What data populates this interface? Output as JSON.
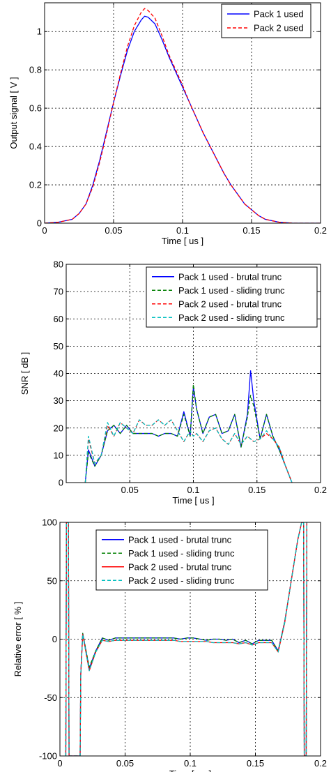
{
  "chart_data": [
    {
      "type": "line",
      "xlabel": "Time [ us ]",
      "ylabel": "Output signal [ V ]",
      "xlim": [
        0,
        0.2
      ],
      "ylim": [
        0,
        1.15
      ],
      "xticks": [
        0,
        0.05,
        0.1,
        0.15,
        0.2
      ],
      "xtick_labels": [
        "0",
        "0.05",
        "0.1",
        "0.15",
        "0.2"
      ],
      "yticks": [
        0,
        0.2,
        0.4,
        0.6,
        0.8,
        1
      ],
      "ytick_labels": [
        "0",
        "0.2",
        "0.4",
        "0.6",
        "0.8",
        "1"
      ],
      "grid": true,
      "legend_position": "top-right",
      "series": [
        {
          "name": "Pack 1 used",
          "color": "#0000ff",
          "dash": "solid",
          "x": [
            0,
            0.01,
            0.02,
            0.025,
            0.03,
            0.035,
            0.04,
            0.045,
            0.05,
            0.055,
            0.06,
            0.065,
            0.07,
            0.0725,
            0.075,
            0.08,
            0.085,
            0.09,
            0.095,
            0.1,
            0.105,
            0.11,
            0.115,
            0.12,
            0.125,
            0.13,
            0.135,
            0.14,
            0.145,
            0.15,
            0.155,
            0.16,
            0.17,
            0.18,
            0.19,
            0.2
          ],
          "y": [
            0,
            0.005,
            0.02,
            0.05,
            0.1,
            0.2,
            0.33,
            0.48,
            0.63,
            0.77,
            0.9,
            1,
            1.06,
            1.08,
            1.075,
            1.04,
            0.96,
            0.87,
            0.79,
            0.71,
            0.63,
            0.55,
            0.47,
            0.4,
            0.33,
            0.26,
            0.2,
            0.15,
            0.1,
            0.07,
            0.04,
            0.02,
            0.005,
            0,
            0,
            0
          ]
        },
        {
          "name": "Pack 2 used",
          "color": "#ff0000",
          "dash": "dashed",
          "x": [
            0,
            0.01,
            0.02,
            0.025,
            0.03,
            0.035,
            0.04,
            0.045,
            0.05,
            0.055,
            0.06,
            0.065,
            0.07,
            0.0725,
            0.075,
            0.08,
            0.085,
            0.09,
            0.095,
            0.1,
            0.105,
            0.11,
            0.115,
            0.12,
            0.125,
            0.13,
            0.135,
            0.14,
            0.145,
            0.15,
            0.155,
            0.16,
            0.17,
            0.18,
            0.19,
            0.2
          ],
          "y": [
            0,
            0.005,
            0.02,
            0.05,
            0.1,
            0.19,
            0.32,
            0.47,
            0.63,
            0.78,
            0.92,
            1.03,
            1.1,
            1.12,
            1.11,
            1.07,
            0.98,
            0.88,
            0.8,
            0.72,
            0.63,
            0.55,
            0.47,
            0.4,
            0.33,
            0.26,
            0.2,
            0.15,
            0.1,
            0.07,
            0.04,
            0.02,
            0.005,
            0,
            0,
            0
          ]
        }
      ],
      "legend_entries": [
        "Pack 1 used",
        "Pack 2 used"
      ]
    },
    {
      "type": "line",
      "xlabel": "Time [ us ]",
      "ylabel": "SNR [ dB ]",
      "xlim": [
        0,
        0.2
      ],
      "ylim": [
        0,
        80
      ],
      "xticks": [
        0.05,
        0.1,
        0.15,
        0.2
      ],
      "xtick_labels": [
        "0.05",
        "0.1",
        "0.15",
        "0.2"
      ],
      "yticks": [
        0,
        10,
        20,
        30,
        40,
        50,
        60,
        70,
        80
      ],
      "ytick_labels": [
        "0",
        "10",
        "20",
        "30",
        "40",
        "50",
        "60",
        "70",
        "80"
      ],
      "grid": true,
      "legend_position": "top-right",
      "series": [
        {
          "name": "Pack 1 used - brutal trunc",
          "color": "#0000ff",
          "dash": "solid",
          "x": [
            0.015,
            0.0175,
            0.0225,
            0.0275,
            0.0325,
            0.0375,
            0.0425,
            0.0475,
            0.0525,
            0.0575,
            0.0625,
            0.0675,
            0.0725,
            0.0775,
            0.0825,
            0.0875,
            0.0925,
            0.0975,
            0.1,
            0.1025,
            0.1075,
            0.1125,
            0.1175,
            0.1225,
            0.1275,
            0.1325,
            0.1375,
            0.1425,
            0.145,
            0.1475,
            0.1525,
            0.1575,
            0.1625,
            0.1675,
            0.1725,
            0.1775
          ],
          "y": [
            0,
            12,
            6,
            10,
            19,
            21,
            18,
            21,
            18,
            18,
            18,
            18,
            17,
            18,
            18,
            17,
            26,
            17,
            35,
            27,
            18,
            24,
            25,
            18,
            19,
            25,
            13,
            25,
            41,
            30,
            16,
            25,
            17,
            12,
            6,
            0
          ]
        },
        {
          "name": "Pack 1 used - sliding trunc",
          "color": "#008000",
          "dash": "dashed",
          "x": [
            0.015,
            0.0175,
            0.0225,
            0.0275,
            0.0325,
            0.0375,
            0.0425,
            0.0475,
            0.0525,
            0.0575,
            0.0625,
            0.0675,
            0.0725,
            0.0775,
            0.0825,
            0.0875,
            0.0925,
            0.0975,
            0.1,
            0.1025,
            0.1075,
            0.1125,
            0.1175,
            0.1225,
            0.1275,
            0.1325,
            0.1375,
            0.1425,
            0.145,
            0.1475,
            0.1525,
            0.1575,
            0.1625,
            0.1675,
            0.1725,
            0.1775
          ],
          "y": [
            0,
            11,
            6,
            10,
            19,
            21,
            18,
            21,
            18,
            18,
            18,
            18,
            17,
            18,
            18,
            17,
            25,
            17,
            36,
            27,
            18,
            24,
            25,
            18,
            19,
            25,
            13,
            24,
            32,
            28,
            16,
            25,
            17,
            12,
            6,
            0
          ]
        },
        {
          "name": "Pack 2 used - brutal trunc",
          "color": "#ff0000",
          "dash": "dashed",
          "x": [
            0.015,
            0.0175,
            0.0225,
            0.0275,
            0.0325,
            0.0375,
            0.0425,
            0.0475,
            0.0525,
            0.0575,
            0.0625,
            0.0675,
            0.0725,
            0.0775,
            0.0825,
            0.0875,
            0.0925,
            0.0975,
            0.1,
            0.1025,
            0.1075,
            0.1125,
            0.1175,
            0.1225,
            0.1275,
            0.1325,
            0.1375,
            0.1425,
            0.145,
            0.1475,
            0.1525,
            0.1575,
            0.1625,
            0.1675,
            0.1725,
            0.1775
          ],
          "y": [
            0,
            16,
            7,
            10,
            21,
            17,
            22,
            20,
            18,
            23,
            21,
            21,
            23,
            21,
            23,
            19,
            15,
            19,
            17,
            18,
            15,
            19,
            20,
            16,
            14,
            18,
            14,
            17,
            16,
            15,
            16,
            18,
            16,
            13,
            6,
            0
          ]
        },
        {
          "name": "Pack 2 used - sliding trunc",
          "color": "#00bfbf",
          "dash": "dashed",
          "x": [
            0.015,
            0.0175,
            0.0225,
            0.0275,
            0.0325,
            0.0375,
            0.0425,
            0.0475,
            0.0525,
            0.0575,
            0.0625,
            0.0675,
            0.0725,
            0.0775,
            0.0825,
            0.0875,
            0.0925,
            0.0975,
            0.1,
            0.1025,
            0.1075,
            0.1125,
            0.1175,
            0.1225,
            0.1275,
            0.1325,
            0.1375,
            0.1425,
            0.145,
            0.1475,
            0.1525,
            0.1575,
            0.1625,
            0.1675,
            0.1725,
            0.1775
          ],
          "y": [
            0,
            17,
            7,
            10,
            22,
            17,
            22,
            20,
            18,
            23,
            21,
            21,
            23,
            21,
            23,
            19,
            15,
            19,
            17,
            18,
            15,
            19,
            20,
            16,
            14,
            18,
            14,
            17,
            16,
            15,
            16,
            19,
            16,
            13,
            6,
            0
          ]
        }
      ],
      "legend_entries": [
        "Pack 1 used - brutal trunc",
        "Pack 1 used - sliding trunc",
        "Pack 2 used - brutal trunc",
        "Pack 2 used - sliding trunc"
      ]
    },
    {
      "type": "line",
      "xlabel": "Time [ us ]",
      "ylabel": "Relative error [ % ]",
      "xlim": [
        0,
        0.2
      ],
      "ylim": [
        -100,
        100
      ],
      "xticks": [
        0,
        0.05,
        0.1,
        0.15,
        0.2
      ],
      "xtick_labels": [
        "0",
        "0.05",
        "0.1",
        "0.15",
        "0.2"
      ],
      "yticks": [
        -100,
        -50,
        0,
        50,
        100
      ],
      "ytick_labels": [
        "-100",
        "-50",
        "0",
        "50",
        "100"
      ],
      "grid": true,
      "legend_position": "top-center",
      "series": [
        {
          "name": "Pack 1 used - brutal trunc",
          "color": "#0000ff",
          "dash": "solid",
          "x": [
            0.0045,
            0.005,
            0.0065,
            0.007,
            0.0155,
            0.016,
            0.0175,
            0.0225,
            0.0275,
            0.0325,
            0.0375,
            0.0425,
            0.0475,
            0.0525,
            0.0575,
            0.0625,
            0.0675,
            0.0725,
            0.0775,
            0.0825,
            0.0875,
            0.0925,
            0.0975,
            0.1025,
            0.1075,
            0.1125,
            0.1175,
            0.1225,
            0.1275,
            0.1325,
            0.1375,
            0.1425,
            0.1475,
            0.1525,
            0.1575,
            0.1625,
            0.1675,
            0.1725,
            0.1775,
            0.1825,
            0.1855,
            0.187,
            0.1875,
            0.189,
            0.1895
          ],
          "y": [
            -100,
            100,
            100,
            -100,
            -100,
            -30,
            5,
            -25,
            -10,
            1,
            -1,
            1,
            1,
            1,
            1,
            1,
            1,
            1,
            1,
            1,
            1,
            0,
            1,
            1,
            0,
            -1,
            0,
            0,
            -1,
            0,
            -3,
            -1,
            -4,
            -1,
            -1,
            -1,
            -10,
            15,
            50,
            85,
            100,
            100,
            -100,
            -100,
            100
          ]
        },
        {
          "name": "Pack 1 used - sliding trunc",
          "color": "#008000",
          "dash": "dashed",
          "x": [
            0.0045,
            0.005,
            0.0065,
            0.007,
            0.0155,
            0.016,
            0.0175,
            0.0225,
            0.0275,
            0.0325,
            0.0375,
            0.0425,
            0.0475,
            0.0525,
            0.0575,
            0.0625,
            0.0675,
            0.0725,
            0.0775,
            0.0825,
            0.0875,
            0.0925,
            0.0975,
            0.1025,
            0.1075,
            0.1125,
            0.1175,
            0.1225,
            0.1275,
            0.1325,
            0.1375,
            0.1425,
            0.1475,
            0.1525,
            0.1575,
            0.1625,
            0.1675,
            0.1725,
            0.1775,
            0.1825,
            0.1855,
            0.187,
            0.1875,
            0.189,
            0.1895
          ],
          "y": [
            -100,
            100,
            100,
            -100,
            -100,
            -30,
            5,
            -24,
            -10,
            1,
            -1,
            1,
            1,
            1,
            1,
            1,
            1,
            1,
            1,
            1,
            1,
            0,
            1,
            1,
            0,
            -1,
            0,
            0,
            -1,
            0,
            -3,
            -1,
            -4,
            -1,
            -1,
            -1,
            -10,
            15,
            50,
            85,
            100,
            100,
            -100,
            -100,
            100
          ]
        },
        {
          "name": "Pack 2 used - brutal trunc",
          "color": "#ff0000",
          "dash": "solid",
          "x": [
            0.0045,
            0.005,
            0.0065,
            0.007,
            0.0155,
            0.016,
            0.0175,
            0.0225,
            0.0275,
            0.0325,
            0.0375,
            0.0425,
            0.0475,
            0.0525,
            0.0575,
            0.0625,
            0.0675,
            0.0725,
            0.0775,
            0.0825,
            0.0875,
            0.0925,
            0.0975,
            0.1025,
            0.1075,
            0.1125,
            0.1175,
            0.1225,
            0.1275,
            0.1325,
            0.1375,
            0.1425,
            0.1475,
            0.1525,
            0.1575,
            0.1625,
            0.1675,
            0.1725,
            0.1775,
            0.1825,
            0.1855,
            0.187,
            0.1875,
            0.189,
            0.1895
          ],
          "y": [
            -100,
            100,
            100,
            -100,
            -100,
            -30,
            4,
            -27,
            -11,
            -1,
            -2,
            -1,
            -1,
            -1,
            -1,
            -1,
            -1,
            -1,
            -1,
            -1,
            -1,
            -2,
            -2,
            -2,
            -2,
            -2,
            -3,
            -3,
            -3,
            -3,
            -4,
            -3,
            -5,
            -3,
            -3,
            -3,
            -11,
            14,
            50,
            85,
            100,
            100,
            -100,
            -100,
            100
          ]
        },
        {
          "name": "Pack 2 used - sliding trunc",
          "color": "#00bfbf",
          "dash": "dashed",
          "x": [
            0.0045,
            0.005,
            0.0065,
            0.007,
            0.0155,
            0.016,
            0.0175,
            0.0225,
            0.0275,
            0.0325,
            0.0375,
            0.0425,
            0.0475,
            0.0525,
            0.0575,
            0.0625,
            0.0675,
            0.0725,
            0.0775,
            0.0825,
            0.0875,
            0.0925,
            0.0975,
            0.1025,
            0.1075,
            0.1125,
            0.1175,
            0.1225,
            0.1275,
            0.1325,
            0.1375,
            0.1425,
            0.1475,
            0.1525,
            0.1575,
            0.1625,
            0.1675,
            0.1725,
            0.1775,
            0.1825,
            0.1855,
            0.187,
            0.1875,
            0.189,
            0.1895
          ],
          "y": [
            -100,
            100,
            100,
            -100,
            -100,
            -30,
            4,
            -27,
            -11,
            -1,
            -2,
            -1,
            -1,
            -1,
            -1,
            -1,
            -1,
            -1,
            -1,
            -1,
            -1,
            -2,
            -2,
            -2,
            -2,
            -2,
            -3,
            -3,
            -3,
            -3,
            -4,
            -3,
            -5,
            -3,
            -3,
            -3,
            -11,
            14,
            50,
            85,
            100,
            100,
            -100,
            -100,
            100
          ]
        }
      ],
      "legend_entries": [
        "Pack 1 used - brutal trunc",
        "Pack 1 used - sliding trunc",
        "Pack 2 used - brutal trunc",
        "Pack 2 used - sliding trunc"
      ]
    }
  ]
}
